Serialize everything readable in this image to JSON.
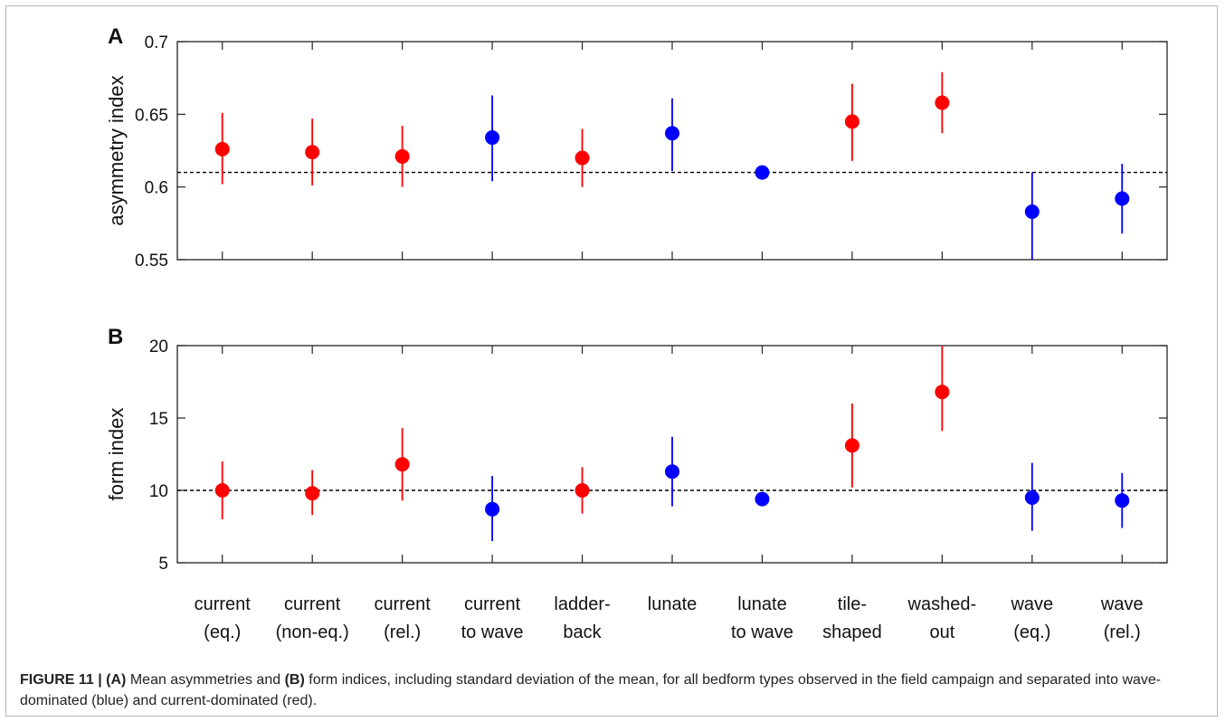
{
  "chart_data": [
    {
      "type": "scatter",
      "panel_label": "A",
      "ylabel": "asymmetry index",
      "ylim": [
        0.55,
        0.7
      ],
      "yticks": [
        "0.55",
        "0.6",
        "0.65",
        "0.7"
      ],
      "reference_line": 0.61,
      "categories": [
        [
          "current",
          "(eq.)"
        ],
        [
          "current",
          "(non-eq.)"
        ],
        [
          "current",
          "(rel.)"
        ],
        [
          "current",
          "to wave"
        ],
        [
          "ladder-",
          "back"
        ],
        [
          "lunate",
          ""
        ],
        [
          "lunate",
          "to wave"
        ],
        [
          "tile-",
          "shaped"
        ],
        [
          "washed-",
          "out"
        ],
        [
          "wave",
          "(eq.)"
        ],
        [
          "wave",
          "(rel.)"
        ]
      ],
      "points": [
        {
          "mean": 0.626,
          "low": 0.602,
          "high": 0.651,
          "group": "current"
        },
        {
          "mean": 0.624,
          "low": 0.601,
          "high": 0.647,
          "group": "current"
        },
        {
          "mean": 0.621,
          "low": 0.6,
          "high": 0.642,
          "group": "current"
        },
        {
          "mean": 0.634,
          "low": 0.604,
          "high": 0.663,
          "group": "wave"
        },
        {
          "mean": 0.62,
          "low": 0.6,
          "high": 0.64,
          "group": "current"
        },
        {
          "mean": 0.637,
          "low": 0.611,
          "high": 0.661,
          "group": "wave"
        },
        {
          "mean": 0.61,
          "low": 0.608,
          "high": 0.612,
          "group": "wave"
        },
        {
          "mean": 0.645,
          "low": 0.618,
          "high": 0.671,
          "group": "current"
        },
        {
          "mean": 0.658,
          "low": 0.637,
          "high": 0.679,
          "group": "current"
        },
        {
          "mean": 0.583,
          "low": 0.55,
          "high": 0.61,
          "group": "wave"
        },
        {
          "mean": 0.592,
          "low": 0.568,
          "high": 0.616,
          "group": "wave"
        }
      ]
    },
    {
      "type": "scatter",
      "panel_label": "B",
      "ylabel": "form index",
      "ylim": [
        5,
        20
      ],
      "yticks": [
        "5",
        "10",
        "15",
        "20"
      ],
      "reference_line": 10,
      "points": [
        {
          "mean": 10.0,
          "low": 8.0,
          "high": 12.0,
          "group": "current"
        },
        {
          "mean": 9.8,
          "low": 8.3,
          "high": 11.4,
          "group": "current"
        },
        {
          "mean": 11.8,
          "low": 9.3,
          "high": 14.3,
          "group": "current"
        },
        {
          "mean": 8.7,
          "low": 6.5,
          "high": 11.0,
          "group": "wave"
        },
        {
          "mean": 10.0,
          "low": 8.4,
          "high": 11.6,
          "group": "current"
        },
        {
          "mean": 11.3,
          "low": 8.9,
          "high": 13.7,
          "group": "wave"
        },
        {
          "mean": 9.4,
          "low": 9.3,
          "high": 9.5,
          "group": "wave"
        },
        {
          "mean": 13.1,
          "low": 10.2,
          "high": 16.0,
          "group": "current"
        },
        {
          "mean": 16.8,
          "low": 14.1,
          "high": 20.0,
          "group": "current"
        },
        {
          "mean": 9.5,
          "low": 7.2,
          "high": 11.9,
          "group": "wave"
        },
        {
          "mean": 9.3,
          "low": 7.4,
          "high": 11.2,
          "group": "wave"
        }
      ]
    }
  ],
  "colors": {
    "current": "#ff0000",
    "wave": "#0000ff",
    "reference_line": "#000000",
    "axes": "#222222"
  },
  "caption": {
    "figure_label": "FIGURE 11 | ",
    "part_a": "(A)",
    "text_1": " Mean asymmetries and ",
    "part_b": "(B)",
    "text_2": " form indices, including standard deviation of the mean, for all bedform types observed in the field campaign and separated into wave-dominated (blue) and current-dominated (red)."
  }
}
